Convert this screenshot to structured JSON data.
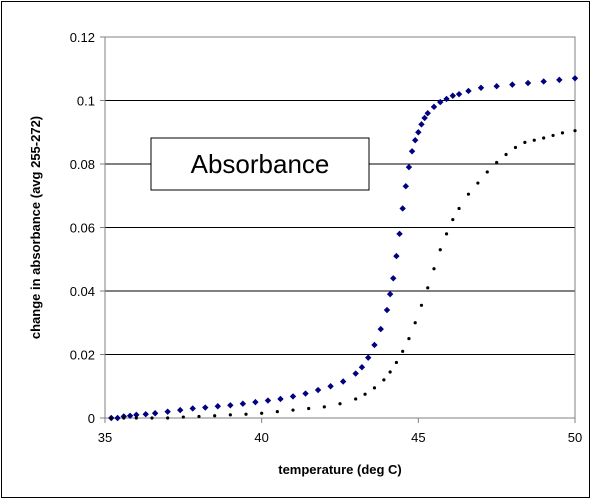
{
  "chart_data": {
    "type": "scatter",
    "title": "",
    "annotation": "Absorbance",
    "xlabel": "temperature (deg C)",
    "ylabel": "change in absorbance (avg 255-272)",
    "xlim": [
      35,
      50
    ],
    "ylim": [
      0,
      0.12
    ],
    "xticks": [
      35,
      40,
      45,
      50
    ],
    "yticks": [
      0,
      0.02,
      0.04,
      0.06,
      0.08,
      0.1,
      0.12
    ],
    "ytick_labels": [
      "0",
      "0.02",
      "0.04",
      "0.06",
      "0.08",
      "0.1",
      "0.12"
    ],
    "xtick_labels": [
      "35",
      "40",
      "45",
      "50"
    ],
    "grid": "horizontal",
    "legend": "none",
    "series": [
      {
        "color": "#000080",
        "marker": "diamond",
        "x": [
          35.2,
          35.4,
          35.6,
          35.8,
          36.0,
          36.3,
          36.6,
          37.0,
          37.4,
          37.8,
          38.2,
          38.6,
          39.0,
          39.4,
          39.8,
          40.2,
          40.6,
          41.0,
          41.4,
          41.8,
          42.2,
          42.6,
          43.0,
          43.2,
          43.4,
          43.6,
          43.8,
          44.0,
          44.1,
          44.2,
          44.3,
          44.4,
          44.5,
          44.6,
          44.7,
          44.8,
          44.9,
          45.0,
          45.1,
          45.2,
          45.3,
          45.5,
          45.7,
          45.9,
          46.1,
          46.3,
          46.6,
          47.0,
          47.5,
          48.0,
          48.5,
          49.0,
          49.5,
          50.0
        ],
        "y": [
          0.0,
          0.0,
          0.0005,
          0.0007,
          0.001,
          0.0012,
          0.0015,
          0.002,
          0.0025,
          0.003,
          0.0033,
          0.0037,
          0.004,
          0.0045,
          0.005,
          0.0055,
          0.006,
          0.0068,
          0.0077,
          0.0088,
          0.01,
          0.0115,
          0.014,
          0.016,
          0.019,
          0.023,
          0.028,
          0.034,
          0.039,
          0.044,
          0.051,
          0.058,
          0.066,
          0.073,
          0.079,
          0.084,
          0.0875,
          0.09,
          0.0925,
          0.0945,
          0.096,
          0.098,
          0.0995,
          0.1005,
          0.1015,
          0.102,
          0.103,
          0.104,
          0.1045,
          0.105,
          0.1055,
          0.106,
          0.1065,
          0.107
        ]
      },
      {
        "color": "#000000",
        "marker": "dot",
        "x": [
          35.2,
          35.6,
          36.0,
          36.5,
          37.0,
          37.5,
          38.0,
          38.5,
          39.0,
          39.5,
          40.0,
          40.5,
          41.0,
          41.5,
          42.0,
          42.5,
          43.0,
          43.3,
          43.6,
          43.9,
          44.1,
          44.3,
          44.5,
          44.7,
          44.9,
          45.1,
          45.3,
          45.5,
          45.7,
          45.9,
          46.1,
          46.3,
          46.6,
          46.9,
          47.2,
          47.5,
          47.8,
          48.1,
          48.4,
          48.7,
          49.0,
          49.3,
          49.6,
          50.0
        ],
        "y": [
          0.0,
          0.0,
          0.0,
          0.0,
          0.0,
          0.0003,
          0.0005,
          0.0007,
          0.001,
          0.0012,
          0.0015,
          0.002,
          0.0025,
          0.003,
          0.0035,
          0.0045,
          0.006,
          0.0075,
          0.0095,
          0.012,
          0.0145,
          0.0175,
          0.021,
          0.025,
          0.03,
          0.0355,
          0.041,
          0.047,
          0.053,
          0.058,
          0.0625,
          0.066,
          0.0705,
          0.074,
          0.0775,
          0.0805,
          0.083,
          0.0852,
          0.0868,
          0.0875,
          0.0882,
          0.089,
          0.0898,
          0.0905
        ]
      }
    ]
  }
}
